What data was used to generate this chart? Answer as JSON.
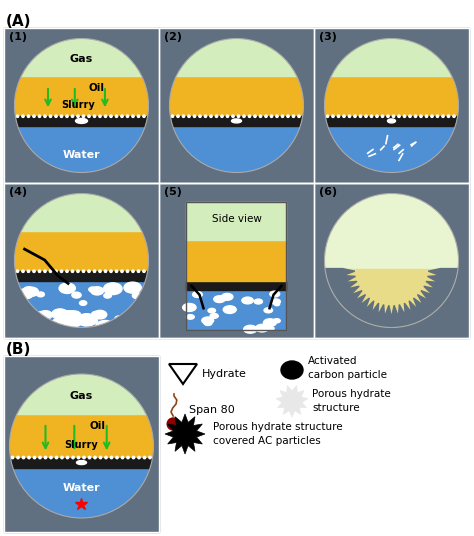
{
  "bg_color": "#607080",
  "gas_color": "#d4edbc",
  "oil_color": "#f0b422",
  "water_color": "#4f8fd4",
  "black_layer": "#1a1a1a",
  "white_color": "#ffffff",
  "A_label": "(A)",
  "B_label": "(B)",
  "panel_labels": [
    "(1)",
    "(2)",
    "(3)",
    "(4)",
    "(5)",
    "(6)"
  ],
  "gas_label": "Gas",
  "oil_label": "Oil",
  "slurry_label": "Slurry",
  "water_label": "Water",
  "side_view_label": "Side view",
  "cell_border": "#4a5a68",
  "cell_fill": "#607080",
  "panel6_gas_color": "#e8f5d0",
  "panel6_oil_color": "#e8dc88",
  "panel6_spike_color": "#607080"
}
